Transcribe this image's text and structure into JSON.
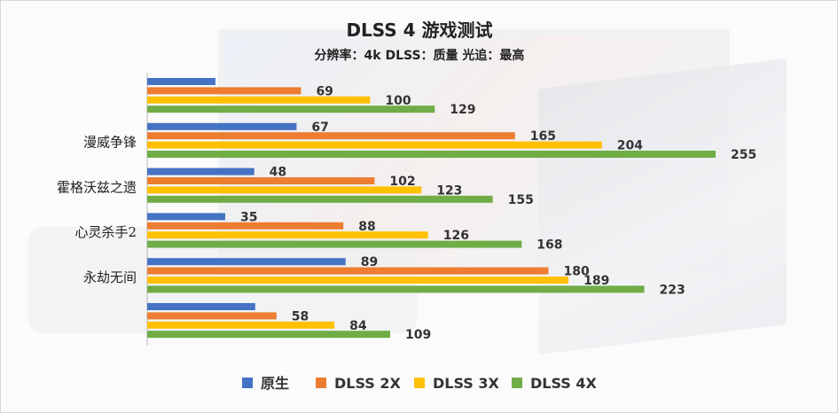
{
  "chart_data": {
    "type": "bar",
    "orientation": "horizontal",
    "title": "DLSS 4 游戏测试",
    "subtitle": "分辨率：4k DLSS：质量 光追：最高",
    "categories": [
      "",
      "漫威争锋",
      "霍格沃兹之遗",
      "心灵杀手2",
      "永劫无间",
      ""
    ],
    "series": [
      {
        "name": "原生",
        "color": "#4472C4",
        "values": [
          null,
          67,
          48,
          35,
          89,
          null
        ],
        "bar_fraction": [
          0.12,
          null,
          null,
          null,
          null,
          0.19
        ]
      },
      {
        "name": "DLSS 2X",
        "color": "#ED7D31",
        "values": [
          69,
          165,
          102,
          88,
          180,
          58
        ]
      },
      {
        "name": "DLSS 3X",
        "color": "#FFC000",
        "values": [
          100,
          204,
          123,
          126,
          189,
          84
        ]
      },
      {
        "name": "DLSS 4X",
        "color": "#70AD47",
        "values": [
          129,
          255,
          155,
          168,
          223,
          109
        ]
      }
    ],
    "data_labels": [
      [
        "",
        "69",
        "100",
        "129"
      ],
      [
        "67",
        "165",
        "204",
        "255"
      ],
      [
        "48",
        "102",
        "123",
        "155"
      ],
      [
        "35",
        "88",
        "126",
        "168"
      ],
      [
        "89",
        "180",
        "189",
        "223"
      ],
      [
        "",
        "58",
        "84",
        "109"
      ]
    ],
    "xlim": [
      0,
      255
    ],
    "legend_position": "bottom",
    "grid": false
  }
}
